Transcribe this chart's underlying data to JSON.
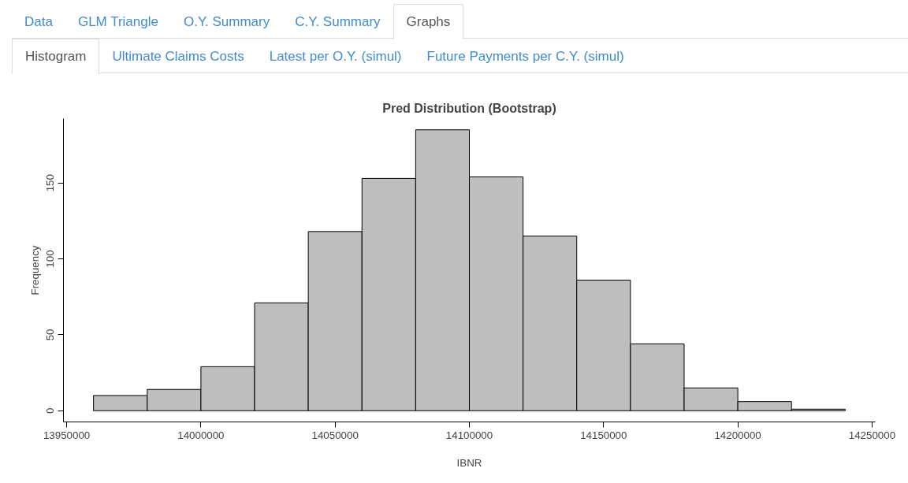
{
  "chart_data": {
    "type": "histogram",
    "title": "Pred Distribution (Bootstrap)",
    "xlabel": "IBNR",
    "ylabel": "Frequency",
    "bins": [
      13960000,
      13980000,
      14000000,
      14020000,
      14040000,
      14060000,
      14080000,
      14100000,
      14120000,
      14140000,
      14160000,
      14180000,
      14200000,
      14220000,
      14240000
    ],
    "values": [
      10,
      14,
      29,
      71,
      118,
      153,
      185,
      154,
      115,
      86,
      44,
      15,
      6,
      1
    ],
    "color": "#bebebe",
    "xlim": [
      13948800,
      14251200
    ],
    "xticks": [
      13950000,
      14000000,
      14050000,
      14100000,
      14150000,
      14200000,
      14250000
    ],
    "ylim": [
      -7.4,
      192.4
    ],
    "yticks": [
      0,
      50,
      100,
      150
    ],
    "annotations": [
      "Data",
      "GLM Triangle",
      "O.Y. Summary",
      "C.Y. Summary",
      "Graphs",
      "Histogram",
      "Ultimate Claims Costs",
      "Latest per O.Y. (simul)",
      "Future Payments per C.Y. (simul)"
    ]
  }
}
